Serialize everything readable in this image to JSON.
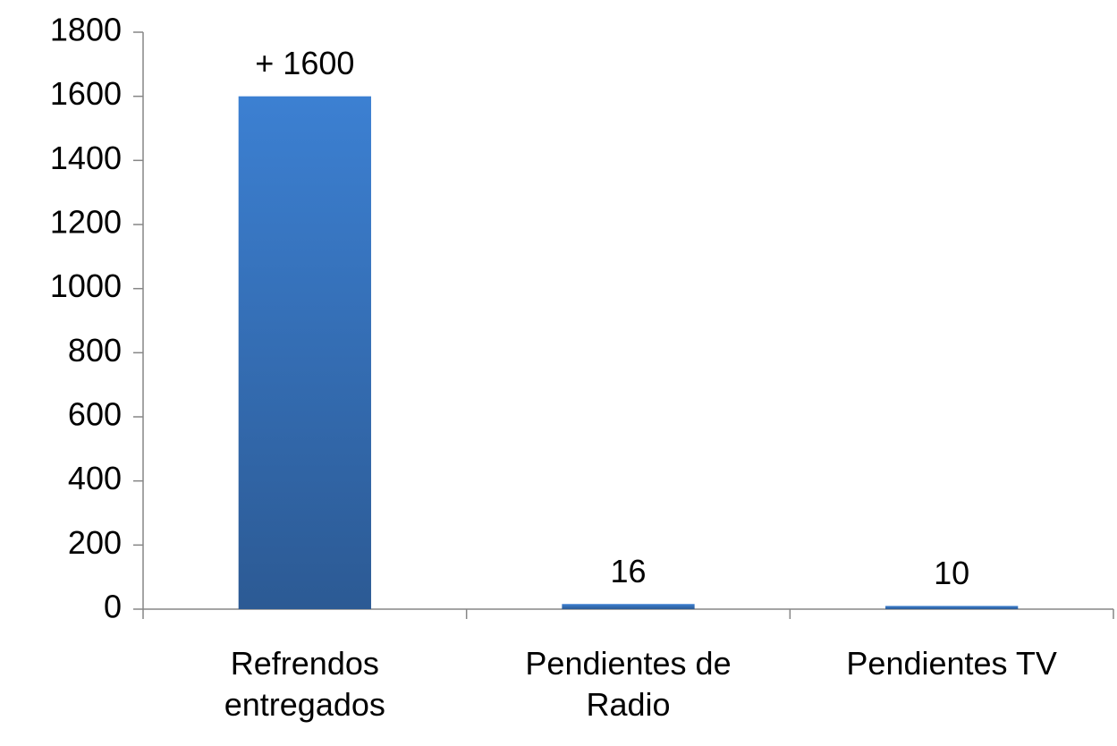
{
  "chart_data": {
    "type": "bar",
    "categories": [
      "Refrendos entregados",
      "Pendientes de Radio",
      "Pendientes TV"
    ],
    "values": [
      1600,
      16,
      10
    ],
    "value_labels": [
      "+ 1600",
      "16",
      "10"
    ],
    "color": "#3a78c8",
    "ylim": [
      0,
      1800
    ],
    "yticks": [
      0,
      200,
      400,
      600,
      800,
      1000,
      1200,
      1400,
      1600,
      1800
    ],
    "grid": false
  }
}
